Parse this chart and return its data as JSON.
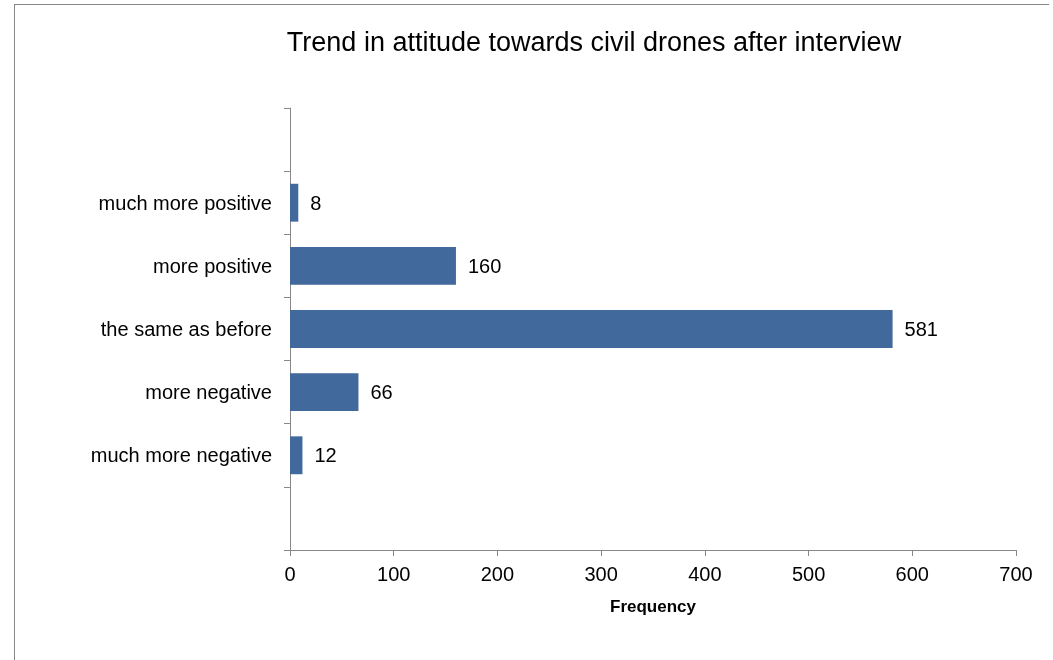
{
  "chart_data": {
    "type": "bar",
    "orientation": "horizontal",
    "title": "Trend in attitude towards civil drones after interview",
    "xlabel": "Frequency",
    "categories": [
      null,
      "much more positive",
      "more positive",
      "the same as before",
      "more negative",
      "much more negative",
      null
    ],
    "values": [
      null,
      8,
      160,
      581,
      66,
      12,
      null
    ],
    "color": "#41699b",
    "xlim": [
      0,
      700
    ],
    "xticks": [
      0,
      100,
      200,
      300,
      400,
      500,
      600,
      700
    ],
    "grid": false,
    "data_labels": true
  }
}
